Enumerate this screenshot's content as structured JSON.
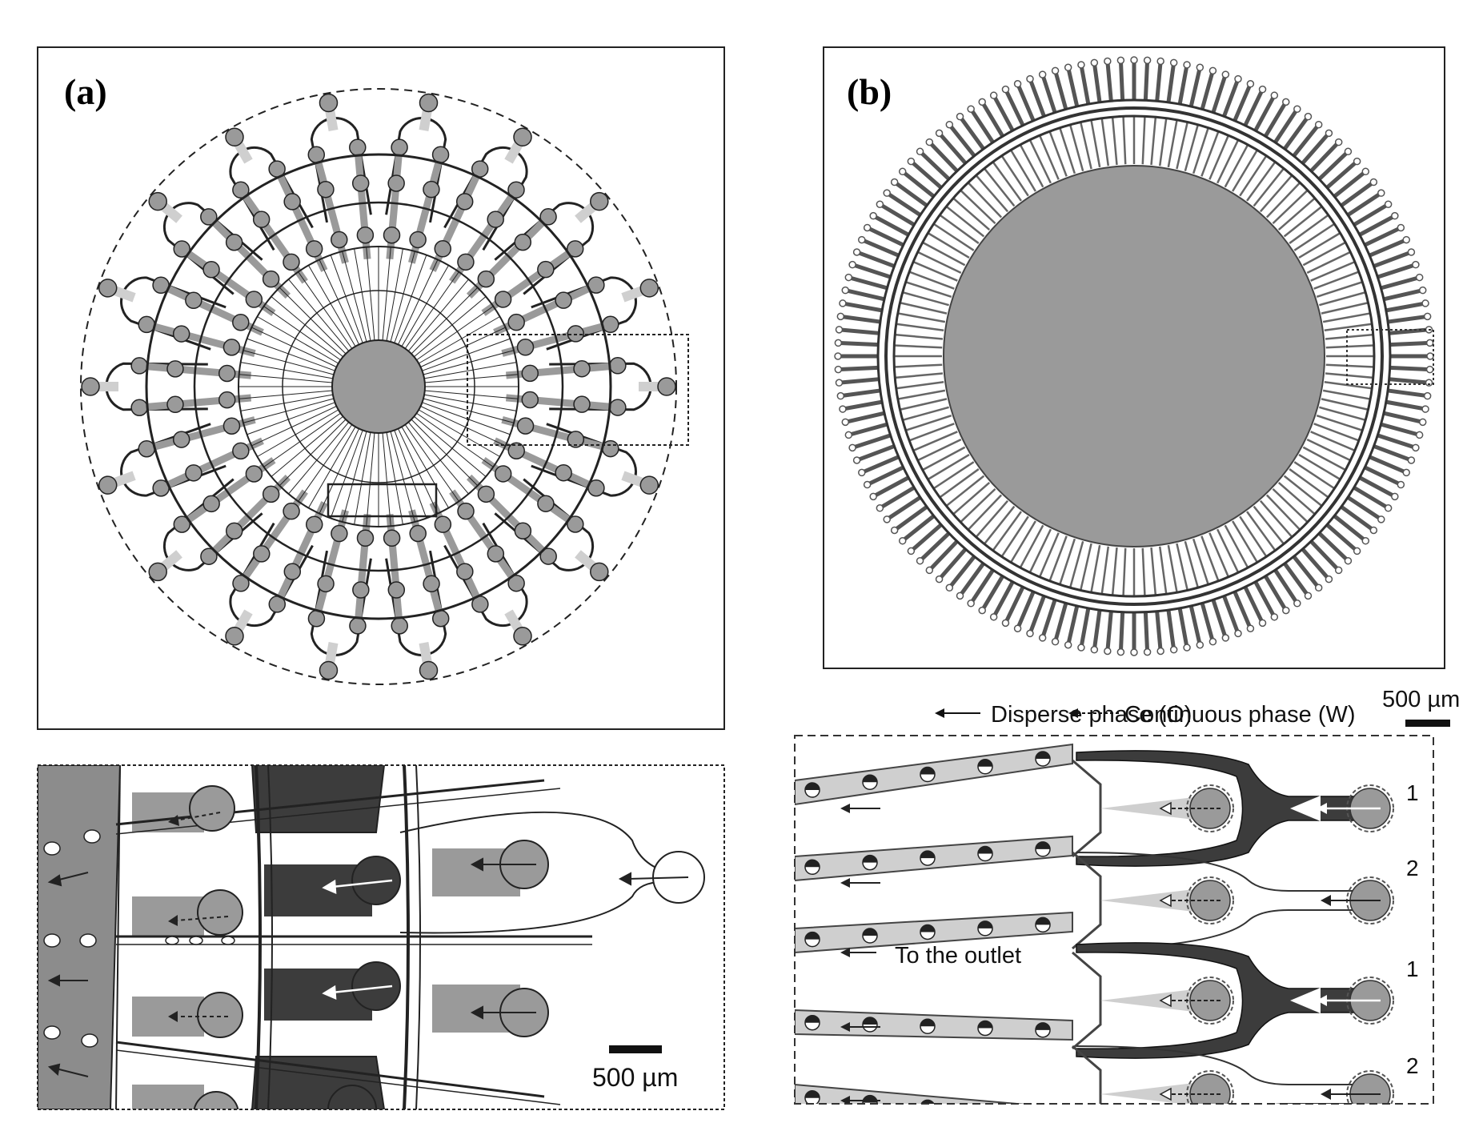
{
  "panel_a": {
    "label": "(a)",
    "scale_label": "500 µm"
  },
  "panel_b": {
    "label": "(b)",
    "legend": {
      "disperse": "Disperse phase (O)",
      "continuous": "Continuous phase (W)"
    },
    "scale_label": "500 µm",
    "outlet_label": "To the outlet",
    "row_numbers": [
      "1",
      "2",
      "1",
      "2"
    ]
  },
  "colors": {
    "grey": "#9a9a9a",
    "dark": "#3c3c3c",
    "light": "#cfcfcf",
    "line": "#222222"
  }
}
